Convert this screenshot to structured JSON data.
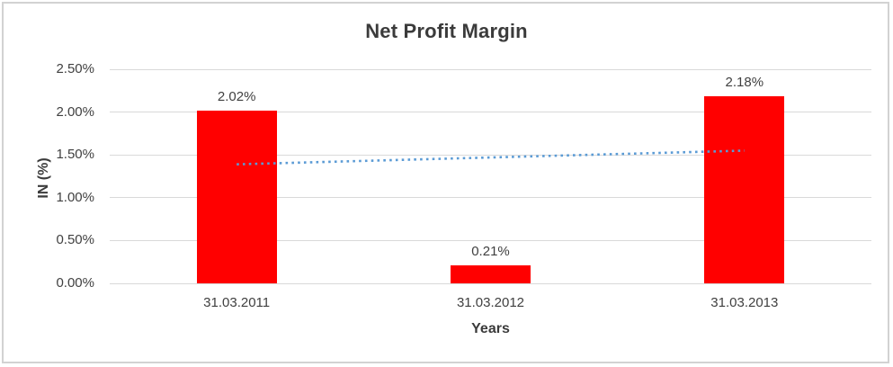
{
  "chart_data": {
    "type": "bar",
    "title": "Net Profit Margin",
    "categories": [
      "31.03.2011",
      "31.03.2012",
      "31.03.2013"
    ],
    "values": [
      2.02,
      0.21,
      2.18
    ],
    "data_labels": [
      "2.02%",
      "0.21%",
      "2.18%"
    ],
    "xlabel": "Years",
    "ylabel": "IN (%)",
    "ylim": [
      0,
      2.5
    ],
    "yticks": [
      {
        "value": 0.0,
        "label": "0.00%"
      },
      {
        "value": 0.5,
        "label": "0.50%"
      },
      {
        "value": 1.0,
        "label": "1.00%"
      },
      {
        "value": 1.5,
        "label": "1.50%"
      },
      {
        "value": 2.0,
        "label": "2.00%"
      },
      {
        "value": 2.5,
        "label": "2.50%"
      }
    ],
    "grid": true,
    "legend": "none",
    "trendline": {
      "type": "linear",
      "style": "dotted",
      "start_value": 1.39,
      "end_value": 1.55
    },
    "colors": {
      "bar": "#ff0000",
      "trendline": "#5b9bd5",
      "gridline": "#d9d9d9",
      "text": "#404040",
      "title_text": "#3b3b3b",
      "frame_border": "#d2d2d2"
    }
  }
}
